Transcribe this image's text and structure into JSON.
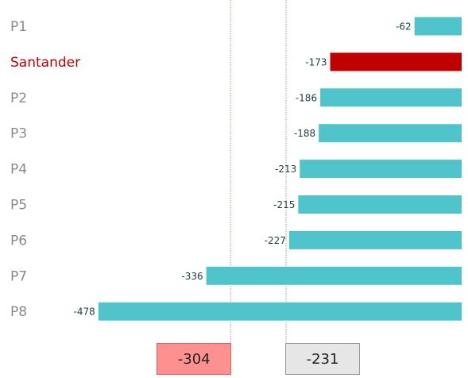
{
  "chart_data": {
    "type": "bar",
    "orientation": "horizontal",
    "categories": [
      "P1",
      "Santander",
      "P2",
      "P3",
      "P4",
      "P5",
      "P6",
      "P7",
      "P8"
    ],
    "values": [
      -62,
      -173,
      -186,
      -188,
      -213,
      -215,
      -227,
      -336,
      -478
    ],
    "highlight_category": "Santander",
    "xlim": [
      -478,
      0
    ],
    "grid": false,
    "colors": {
      "default_bar": "#4fc4ca",
      "highlight_bar": "#c00000",
      "highlight_label": "#c00000",
      "category_label": "#8a8a8a",
      "value_label": "#1f3d3d"
    },
    "reference_lines": [
      {
        "value": -304,
        "label": "-304",
        "line_color": "#f08080",
        "box_fill": "#ff9090",
        "box_border": "#e06060"
      },
      {
        "value": -231,
        "label": "-231",
        "line_color": "#999999",
        "box_fill": "#e6e6e6",
        "box_border": "#999999"
      }
    ]
  }
}
